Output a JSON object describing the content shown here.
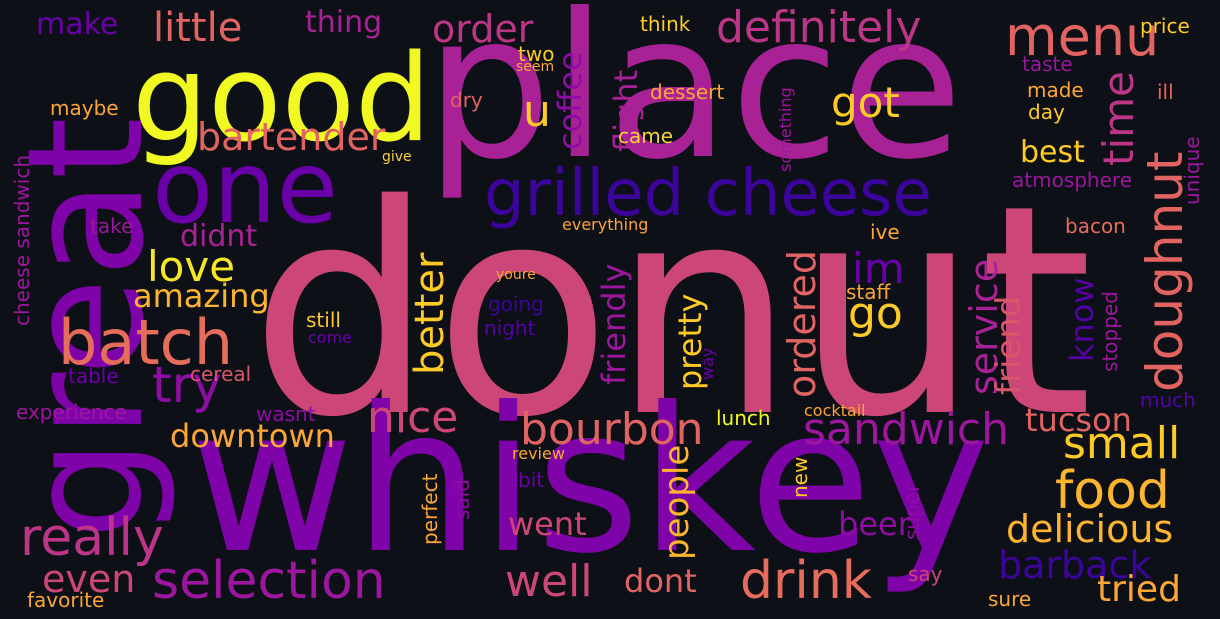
{
  "words": [
    {
      "text": "donut",
      "color": "#cc4778"
    },
    {
      "text": "whiskey",
      "color": "#7e03a8"
    },
    {
      "text": "place",
      "color": "#a82296"
    },
    {
      "text": "great",
      "color": "#7e03a8"
    },
    {
      "text": "good",
      "color": "#f0f921"
    },
    {
      "text": "one",
      "color": "#6a00a8"
    },
    {
      "text": "grilled cheese",
      "color": "#3b049a"
    },
    {
      "text": "menu",
      "color": "#e16462"
    },
    {
      "text": "definitely",
      "color": "#bc3587"
    },
    {
      "text": "little",
      "color": "#e16462"
    },
    {
      "text": "make",
      "color": "#6a00a8"
    },
    {
      "text": "thing",
      "color": "#a82296"
    },
    {
      "text": "order",
      "color": "#bc3587"
    },
    {
      "text": "bartender",
      "color": "#e16462"
    },
    {
      "text": "got",
      "color": "#fdca26"
    },
    {
      "text": "u",
      "color": "#fdca26"
    },
    {
      "text": "coffee",
      "color": "#8f0da4"
    },
    {
      "text": "flight",
      "color": "#a82296"
    },
    {
      "text": "time",
      "color": "#bc3587"
    },
    {
      "text": "doughnut",
      "color": "#e16462"
    },
    {
      "text": "best",
      "color": "#fdca26"
    },
    {
      "text": "batch",
      "color": "#e66c5c"
    },
    {
      "text": "love",
      "color": "#f5e626"
    },
    {
      "text": "didnt",
      "color": "#a82296"
    },
    {
      "text": "amazing",
      "color": "#fdb42f"
    },
    {
      "text": "try",
      "color": "#8f0da4"
    },
    {
      "text": "im",
      "color": "#6a00a8"
    },
    {
      "text": "go",
      "color": "#fdca26"
    },
    {
      "text": "better",
      "color": "#fdca26"
    },
    {
      "text": "ordered",
      "color": "#e16462"
    },
    {
      "text": "service",
      "color": "#a82296"
    },
    {
      "text": "friend",
      "color": "#d8576b"
    },
    {
      "text": "know",
      "color": "#5302a3"
    },
    {
      "text": "nice",
      "color": "#cc4778"
    },
    {
      "text": "bourbon",
      "color": "#e16462"
    },
    {
      "text": "sandwich",
      "color": "#9c179e"
    },
    {
      "text": "tucson",
      "color": "#e16462"
    },
    {
      "text": "small",
      "color": "#fdca26"
    },
    {
      "text": "food",
      "color": "#fdb42f"
    },
    {
      "text": "downtown",
      "color": "#fca636"
    },
    {
      "text": "really",
      "color": "#bc3587"
    },
    {
      "text": "selection",
      "color": "#9c179e"
    },
    {
      "text": "drink",
      "color": "#e66c5c"
    },
    {
      "text": "well",
      "color": "#cc4778"
    },
    {
      "text": "went",
      "color": "#cc4778"
    },
    {
      "text": "people",
      "color": "#fdb42f"
    },
    {
      "text": "pretty",
      "color": "#fdca26"
    },
    {
      "text": "friendly",
      "color": "#9c179e"
    },
    {
      "text": "beer",
      "color": "#8f0da4"
    },
    {
      "text": "delicious",
      "color": "#fdb42f"
    },
    {
      "text": "barback",
      "color": "#3b049a"
    },
    {
      "text": "tried",
      "color": "#fca636"
    },
    {
      "text": "even",
      "color": "#cc4778"
    },
    {
      "text": "dont",
      "color": "#e16462"
    },
    {
      "text": "favorite",
      "color": "#fca636"
    },
    {
      "text": "sure",
      "color": "#fca636"
    },
    {
      "text": "price",
      "color": "#fdca26"
    },
    {
      "text": "think",
      "color": "#fdca26"
    },
    {
      "text": "two",
      "color": "#fdca26"
    },
    {
      "text": "seem",
      "color": "#fca636"
    },
    {
      "text": "dry",
      "color": "#e16462"
    },
    {
      "text": "dessert",
      "color": "#fca636"
    },
    {
      "text": "came",
      "color": "#f7d03c"
    },
    {
      "text": "taste",
      "color": "#9c179e"
    },
    {
      "text": "made",
      "color": "#fca636"
    },
    {
      "text": "day",
      "color": "#fdca26"
    },
    {
      "text": "ill",
      "color": "#e16462"
    },
    {
      "text": "maybe",
      "color": "#fca636"
    },
    {
      "text": "cheese sandwich",
      "color": "#9c179e"
    },
    {
      "text": "give",
      "color": "#f7d03c"
    },
    {
      "text": "something",
      "color": "#9c179e"
    },
    {
      "text": "atmosphere",
      "color": "#9c179e"
    },
    {
      "text": "unique",
      "color": "#9c179e"
    },
    {
      "text": "take",
      "color": "#9c179e"
    },
    {
      "text": "everything",
      "color": "#fca636"
    },
    {
      "text": "ive",
      "color": "#fca636"
    },
    {
      "text": "bacon",
      "color": "#e66c5c"
    },
    {
      "text": "youre",
      "color": "#fca636"
    },
    {
      "text": "staff",
      "color": "#fca636"
    },
    {
      "text": "going",
      "color": "#3b049a"
    },
    {
      "text": "night",
      "color": "#5302a3"
    },
    {
      "text": "still",
      "color": "#fdca26"
    },
    {
      "text": "come",
      "color": "#6a00a8"
    },
    {
      "text": "table",
      "color": "#6a00a8"
    },
    {
      "text": "cereal",
      "color": "#d8576b"
    },
    {
      "text": "way",
      "color": "#6a00a8"
    },
    {
      "text": "stopped",
      "color": "#9c179e"
    },
    {
      "text": "experience",
      "color": "#9c179e"
    },
    {
      "text": "wasnt",
      "color": "#8f0da4"
    },
    {
      "text": "lunch",
      "color": "#f0f921"
    },
    {
      "text": "cocktail",
      "color": "#fca636"
    },
    {
      "text": "much",
      "color": "#5302a3"
    },
    {
      "text": "review",
      "color": "#fca636"
    },
    {
      "text": "bit",
      "color": "#6a00a8"
    },
    {
      "text": "perfect",
      "color": "#fca636"
    },
    {
      "text": "said",
      "color": "#8f0da4"
    },
    {
      "text": "new",
      "color": "#fdca26"
    },
    {
      "text": "super",
      "color": "#8f0da4"
    },
    {
      "text": "say",
      "color": "#cc4778"
    }
  ]
}
